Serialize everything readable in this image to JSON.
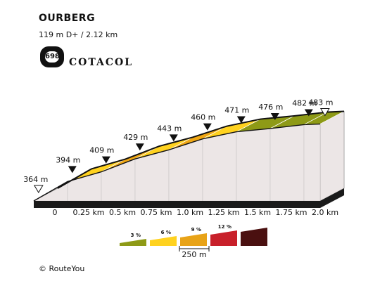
{
  "chart_data": {
    "type": "area",
    "title": "OURBERG",
    "subtitle": "119 m D+ / 2.12 km",
    "x_unit": "km",
    "y_unit": "m",
    "points": [
      {
        "km": 0,
        "elev": 364,
        "label": "364 m",
        "marker": "start"
      },
      {
        "km": 0.25,
        "elev": 394,
        "label": "394 m",
        "marker": "point"
      },
      {
        "km": 0.5,
        "elev": 409,
        "label": "409 m",
        "marker": "point"
      },
      {
        "km": 0.75,
        "elev": 429,
        "label": "429 m",
        "marker": "point"
      },
      {
        "km": 1.0,
        "elev": 443,
        "label": "443 m",
        "marker": "point"
      },
      {
        "km": 1.25,
        "elev": 460,
        "label": "460 m",
        "marker": "point"
      },
      {
        "km": 1.5,
        "elev": 471,
        "label": "471 m",
        "marker": "point"
      },
      {
        "km": 1.75,
        "elev": 476,
        "label": "476 m",
        "marker": "point"
      },
      {
        "km": 2.0,
        "elev": 482,
        "label": "482 m",
        "marker": "point"
      },
      {
        "km": 2.12,
        "elev": 483,
        "label": "483 m",
        "marker": "end"
      }
    ],
    "segments": [
      {
        "from_km": 0,
        "to_km": 0.25,
        "color": "#5c0e0e"
      },
      {
        "from_km": 0.25,
        "to_km": 0.5,
        "color": "#ffd21f"
      },
      {
        "from_km": 0.5,
        "to_km": 0.75,
        "color": "#f0a713"
      },
      {
        "from_km": 0.75,
        "to_km": 1.0,
        "color": "#ffd21f"
      },
      {
        "from_km": 1.0,
        "to_km": 1.25,
        "color": "#f0a713"
      },
      {
        "from_km": 1.25,
        "to_km": 1.5,
        "color": "#ffd21f"
      },
      {
        "from_km": 1.5,
        "to_km": 1.75,
        "color": "#8e9a16"
      },
      {
        "from_km": 1.75,
        "to_km": 2.0,
        "color": "#8e9a16"
      },
      {
        "from_km": 2.0,
        "to_km": 2.12,
        "color": "#8e9a16"
      }
    ],
    "x_ticks": [
      {
        "km": 0,
        "label": "0"
      },
      {
        "km": 0.25,
        "label": "0.25 km"
      },
      {
        "km": 0.5,
        "label": "0.5 km"
      },
      {
        "km": 0.75,
        "label": "0.75 km"
      },
      {
        "km": 1.0,
        "label": "1.0 km"
      },
      {
        "km": 1.25,
        "label": "1.25 km"
      },
      {
        "km": 1.5,
        "label": "1.5 km"
      },
      {
        "km": 1.75,
        "label": "1.75 km"
      },
      {
        "km": 2.0,
        "label": "2.0 km"
      }
    ],
    "legend": {
      "items": [
        {
          "label": "3 %",
          "color": "#8e9a16"
        },
        {
          "label": "6 %",
          "color": "#ffd21f"
        },
        {
          "label": "9 %",
          "color": "#e8a317"
        },
        {
          "label": "12 %",
          "color": "#c8202a"
        },
        {
          "label": "",
          "color": "#4a1010"
        }
      ],
      "scale_label": "250 m"
    },
    "colors": {
      "wall": "#ece6e6",
      "side": "#bdbdbd",
      "base": "#1a1a1a"
    }
  },
  "logo": {
    "badge_number": "698",
    "brand": "COTACOL"
  },
  "footer": {
    "copyright": "© RouteYou"
  }
}
